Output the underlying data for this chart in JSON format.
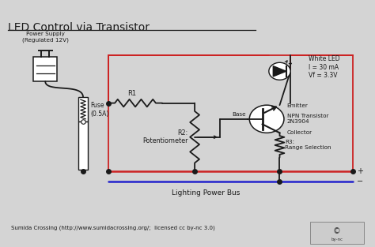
{
  "title": "LED Control via Transistor",
  "bg_color": "#d4d4d4",
  "inner_bg": "#f0f0f0",
  "title_fontsize": 11,
  "footer_text": "Sumida Crossing (http://www.sumidacrossing.org/;  licensed cc by-nc 3.0)",
  "power_supply_label": "Power Supply\n(Regulated 12V)",
  "fuse_label": "Fuse\n(0.5A)",
  "r1_label": "R1",
  "r2_label": "R2:\nPotentiometer",
  "r3_label": "R3:\nRange Selection",
  "led_label": "White LED\nI = 30 mA\nVf = 3.3V",
  "transistor_label": "NPN Transistor\n2N3904",
  "emitter_label": "Emitter",
  "base_label": "Base",
  "collector_label": "Collector",
  "bus_label": "Lighting Power Bus",
  "red_color": "#cc2222",
  "blue_color": "#2222cc",
  "black_color": "#1a1a1a",
  "wire_lw": 1.3,
  "bus_lw": 1.8
}
